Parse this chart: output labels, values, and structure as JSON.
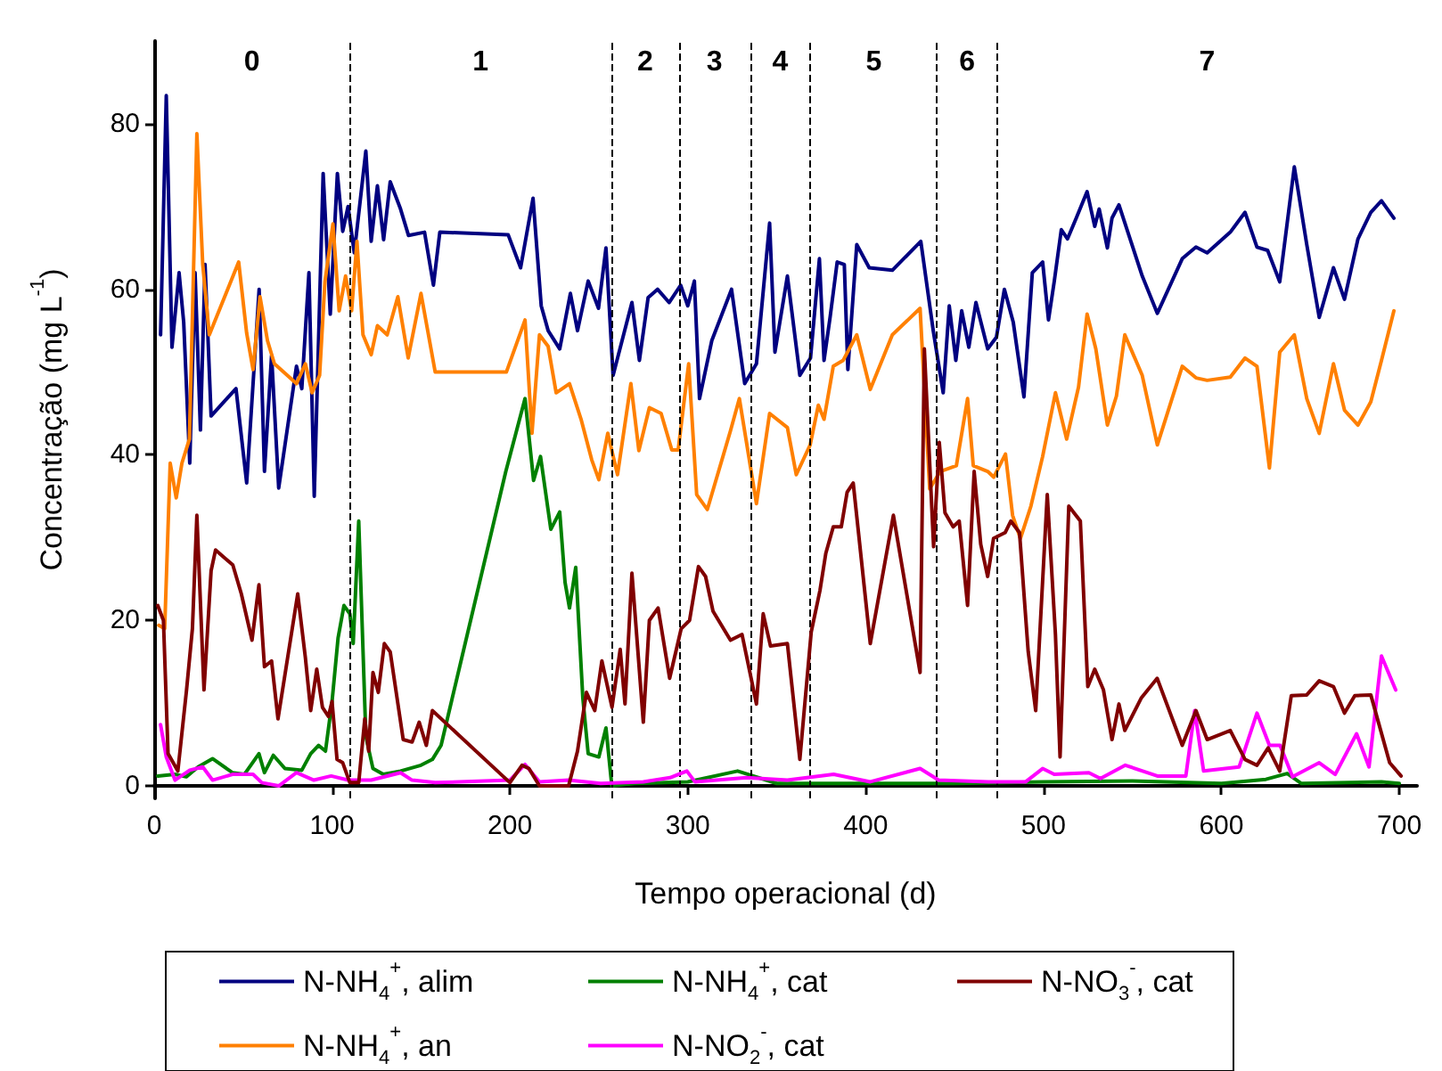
{
  "chart_data": {
    "type": "line",
    "xlabel": "Tempo operacional (d)",
    "ylabel": "Concentração (mg L$^{-1}$)",
    "xlim": [
      0,
      710
    ],
    "xticks": [
      0,
      100,
      200,
      300,
      400,
      500,
      600,
      700
    ],
    "ylim": [
      -1.5,
      90
    ],
    "yticks": [
      0,
      20,
      40,
      60,
      80
    ],
    "legend": "bottom",
    "line_style": "solid",
    "series": [
      {
        "name": "N-NH$_{4}$$^{+}$, alim",
        "color": "#000080",
        "x": [
          3.6,
          6.8,
          10,
          14,
          16.6,
          20,
          23,
          26,
          28.6,
          32,
          46,
          52,
          59,
          62,
          66,
          70,
          80,
          83,
          87,
          90,
          95,
          99,
          103,
          106,
          109,
          112.5,
          119,
          122,
          125.5,
          129,
          132.7,
          138.5,
          143,
          152,
          157,
          160.6,
          199,
          206,
          213,
          217.6,
          221.5,
          228,
          234,
          238,
          244,
          249.8,
          254,
          258,
          268.6,
          272.8,
          277.7,
          283,
          289.5,
          296,
          300,
          303.7,
          306.6,
          313.5,
          324.6,
          332,
          338.6,
          346,
          349,
          356,
          363,
          369,
          374,
          376.6,
          380,
          384,
          388,
          390,
          395,
          402,
          415,
          431,
          438,
          443.6,
          447,
          450.7,
          454,
          458,
          462,
          468.6,
          473.5,
          478,
          483,
          489,
          493.7,
          499.5,
          502.8,
          506,
          510,
          513.5,
          518.4,
          524.5,
          528.8,
          531.3,
          535.9,
          538.5,
          542.4,
          555.5,
          564,
          578,
          585.7,
          592,
          605,
          613.3,
          620,
          626,
          632.8,
          641,
          648,
          655,
          663,
          669.2,
          676.8,
          684,
          690,
          697
        ],
        "values": [
          54.5,
          83.4,
          53,
          62,
          56,
          39,
          62,
          43,
          63,
          44.7,
          48,
          36.6,
          60,
          38,
          52,
          36,
          50.7,
          48,
          62,
          35,
          74,
          57,
          74,
          67,
          70,
          64.4,
          76.7,
          65.8,
          72.5,
          66,
          73,
          69.7,
          66.5,
          66.9,
          60.5,
          66.9,
          66.6,
          62.6,
          71,
          58,
          55,
          52.8,
          59.5,
          55,
          61,
          57.7,
          65,
          49.6,
          58.4,
          51.4,
          59,
          60,
          58.4,
          60.5,
          58,
          61,
          46.8,
          53.8,
          60,
          48.6,
          51,
          68,
          52.4,
          61.6,
          49.6,
          51.7,
          63.7,
          51.4,
          56.6,
          63.3,
          63,
          50.3,
          65.4,
          62.6,
          62.3,
          65.8,
          55,
          47.5,
          58,
          51.4,
          57.4,
          53,
          58.4,
          52.8,
          54.2,
          60,
          56,
          47,
          62,
          63.3,
          56.3,
          60.9,
          67.2,
          66.1,
          68.6,
          71.8,
          67.6,
          69.7,
          65,
          68.6,
          70.2,
          61.6,
          57.1,
          63.7,
          65.1,
          64.4,
          66.9,
          69.3,
          65.1,
          64.7,
          60.9,
          74.8,
          65.4,
          56.6,
          62.6,
          58.8,
          66.1,
          69.3,
          70.7,
          68.6
        ]
      },
      {
        "name": "N-NH$_{4}$$^{+}$, an",
        "color": "#ff8000",
        "x": [
          2.6,
          5.9,
          9,
          12.4,
          15.6,
          19.8,
          24,
          27.3,
          31,
          47.5,
          52,
          55.6,
          59.5,
          63.7,
          67.6,
          80,
          85,
          88.8,
          93,
          96,
          100.5,
          104,
          107.6,
          111,
          114,
          117.4,
          122,
          125.5,
          131,
          137,
          142.8,
          150,
          158,
          198,
          208.5,
          212.4,
          216.6,
          221.5,
          226,
          233.5,
          240,
          246,
          250,
          255,
          260.5,
          268,
          272.5,
          278.4,
          285,
          291,
          294.6,
          300.5,
          305,
          311,
          324,
          329,
          338.6,
          346,
          356,
          361,
          368.8,
          373.4,
          376.6,
          381.8,
          387.3,
          395,
          402.6,
          415,
          430.6,
          436,
          442,
          451,
          457.3,
          460.5,
          468.6,
          472,
          478.6,
          482.6,
          487,
          492.9,
          499.5,
          506.7,
          513,
          519.7,
          524.5,
          529.4,
          535.9,
          541,
          545.7,
          555.5,
          564,
          578,
          585.7,
          592,
          605,
          613.3,
          620,
          627,
          632.8,
          641,
          648,
          655,
          663,
          669.2,
          676.8,
          684,
          690,
          697
        ],
        "values": [
          19.4,
          19,
          39,
          34.8,
          39,
          41.9,
          78.8,
          63,
          54.5,
          63.3,
          54.7,
          50.3,
          59.1,
          53.8,
          51,
          48.6,
          51,
          47.5,
          49.6,
          60.9,
          67.9,
          57.4,
          61.6,
          57.4,
          65.8,
          54.5,
          52.1,
          55.6,
          54.5,
          59.1,
          51.7,
          59.5,
          50,
          50,
          56.3,
          42.6,
          54.5,
          53.1,
          47.5,
          48.6,
          44.3,
          39.4,
          37,
          42.6,
          37.6,
          48.6,
          40.5,
          45.7,
          45,
          40.6,
          40.6,
          51,
          35.2,
          33.4,
          42.9,
          46.8,
          34.1,
          45,
          43.3,
          37.6,
          41.2,
          46,
          44.3,
          50.7,
          51.4,
          54.5,
          47.9,
          54.5,
          57.7,
          35.9,
          38,
          38.7,
          46.8,
          38.7,
          38,
          37.3,
          40.1,
          32.7,
          29.9,
          33.8,
          39.8,
          47.5,
          41.9,
          48.2,
          57,
          52.8,
          43.6,
          47.1,
          54.5,
          49.6,
          41.2,
          50.7,
          49.3,
          49,
          49.4,
          51.7,
          50.7,
          38.4,
          52.4,
          54.5,
          46.8,
          42.6,
          51,
          45.4,
          43.6,
          46.4,
          51.4,
          57.4
        ]
      },
      {
        "name": "N-NH$_{4}$$^{+}$, cat",
        "color": "#008000",
        "x": [
          2,
          11.7,
          18,
          24.7,
          32.8,
          44,
          50.7,
          58.9,
          62,
          67,
          73.5,
          83,
          88,
          92.4,
          96.3,
          100,
          103.4,
          106.7,
          110,
          111.9,
          115,
          119,
          123,
          128.8,
          138.5,
          150,
          156.4,
          161.3,
          197.7,
          208.5,
          213.3,
          217.2,
          223,
          228,
          231,
          233.5,
          237,
          241,
          244,
          250,
          254,
          257.3,
          270,
          300,
          328,
          350,
          400,
          450,
          500,
          550,
          600,
          625,
          637,
          645,
          690,
          700
        ],
        "values": [
          1.2,
          1.4,
          1.1,
          2.3,
          3.3,
          1.6,
          1.4,
          3.9,
          1.6,
          3.7,
          2.1,
          1.9,
          3.9,
          4.9,
          4.2,
          10.2,
          17.9,
          21.8,
          20.8,
          17.2,
          32,
          6,
          2.1,
          1.4,
          1.8,
          2.5,
          3.2,
          4.9,
          38,
          46.8,
          36.9,
          39.8,
          31,
          33.1,
          24.6,
          21.5,
          26.4,
          10.6,
          3.9,
          3.5,
          7,
          0,
          0.3,
          0.5,
          1.8,
          0.3,
          0.3,
          0.3,
          0.5,
          0.6,
          0.3,
          0.8,
          1.5,
          0.3,
          0.5,
          0.3
        ]
      },
      {
        "name": "N-NO$_{2}$$^{-}$, cat",
        "color": "#ff00ff",
        "x": [
          3.6,
          6.8,
          11.7,
          20,
          27.3,
          32.8,
          44,
          55.6,
          60.5,
          70,
          80,
          89.8,
          99.5,
          109,
          122,
          138.5,
          145,
          158,
          200,
          208.5,
          216.6,
          233,
          251,
          275,
          290,
          299.5,
          304,
          333,
          356,
          382,
          402.6,
          430.6,
          441,
          469,
          490,
          499.5,
          506,
          525.5,
          532,
          546,
          564,
          580,
          585,
          590,
          610,
          620,
          627,
          633,
          640,
          655,
          664,
          676,
          683,
          690,
          698
        ],
        "values": [
          7.4,
          3.5,
          0.7,
          1.9,
          2.3,
          0.7,
          1.4,
          1.4,
          0.4,
          0,
          1.6,
          0.7,
          1.2,
          0.7,
          0.7,
          1.6,
          0.7,
          0.4,
          0.7,
          2.6,
          0.5,
          0.7,
          0.3,
          0.5,
          1,
          1.8,
          0.5,
          1,
          0.7,
          1.4,
          0.5,
          2.1,
          0.7,
          0.5,
          0.5,
          2.1,
          1.4,
          1.6,
          0.9,
          2.5,
          1.2,
          1.2,
          9.1,
          1.8,
          2.3,
          8.8,
          4.9,
          4.9,
          1.1,
          2.8,
          1.4,
          6.3,
          2.3,
          15.7,
          11.6
        ]
      },
      {
        "name": "N-NO$_{3}$$^{-}$, cat",
        "color": "#800000",
        "x": [
          2,
          5.2,
          7.8,
          13.3,
          18.2,
          21.5,
          24,
          28,
          32,
          34.5,
          44.2,
          49,
          55,
          58.9,
          62,
          66,
          69.6,
          80.7,
          85,
          88,
          91.4,
          94.6,
          98,
          100,
          102.8,
          106,
          110,
          115,
          118.4,
          120.6,
          123,
          126,
          129.4,
          132.7,
          140,
          145,
          149,
          153,
          156.4,
          200,
          206.8,
          210.7,
          216.6,
          226,
          233,
          238,
          243,
          247.7,
          251.7,
          257.4,
          262,
          264.7,
          268.6,
          275,
          278.4,
          283.3,
          289.8,
          296.3,
          301,
          306,
          310,
          314.2,
          324,
          330.5,
          338.6,
          342.4,
          346.5,
          356,
          363,
          369.4,
          374.3,
          377.6,
          381.8,
          386.3,
          389.6,
          393,
          402.6,
          415.6,
          430.6,
          433,
          438.2,
          441.4,
          444.6,
          449.2,
          452.6,
          457.3,
          461,
          464.7,
          468.6,
          471.9,
          478.4,
          481.6,
          486.5,
          491.4,
          495.6,
          502.1,
          506.7,
          509.3,
          514.2,
          520.7,
          524.9,
          528.8,
          533.7,
          538.5,
          542.4,
          545.7,
          554.9,
          563.9,
          578,
          585.7,
          592,
          605,
          613.3,
          620,
          626.3,
          632.8,
          639.3,
          648,
          655,
          663,
          669.2,
          675,
          684,
          694.6,
          701
        ],
        "values": [
          21.8,
          20,
          3.9,
          1.8,
          11.6,
          19,
          32.7,
          11.6,
          26,
          28.5,
          26.7,
          23.2,
          17.6,
          24.3,
          14.4,
          15.1,
          8.1,
          23.2,
          15.5,
          9.1,
          14.1,
          9.5,
          8.4,
          10.2,
          3.2,
          2.8,
          0.4,
          0.4,
          8.1,
          4.2,
          13.7,
          11.3,
          17.2,
          16.2,
          5.6,
          5.3,
          7.7,
          4.9,
          9.1,
          0.4,
          2.5,
          2.1,
          0,
          0,
          0,
          4.2,
          11.3,
          9.1,
          15.1,
          9.5,
          16.5,
          9.9,
          25.7,
          7.7,
          20,
          21.5,
          13,
          19,
          20,
          26.5,
          25.3,
          21.1,
          17.6,
          18.3,
          9.9,
          20.8,
          16.9,
          17.2,
          3.2,
          18.6,
          23.6,
          28.1,
          31.3,
          31.3,
          35.5,
          36.6,
          17.2,
          32.7,
          13.7,
          52.8,
          28.9,
          41.5,
          33,
          31.3,
          32,
          21.8,
          38,
          29.2,
          25.3,
          29.9,
          30.6,
          32,
          30.6,
          16.2,
          9.1,
          35.2,
          18.3,
          3.5,
          33.8,
          32,
          12,
          14.1,
          11.6,
          5.6,
          9.9,
          6.7,
          10.6,
          13,
          4.9,
          9.1,
          5.6,
          6.7,
          3.2,
          2.5,
          4.6,
          1.8,
          10.9,
          11,
          12.7,
          12,
          8.8,
          10.9,
          11,
          2.8,
          1.2
        ]
      }
    ],
    "ref_lines": [
      {
        "axis": "x",
        "value": 110,
        "color": "#000000",
        "line_style": "dashed"
      },
      {
        "axis": "x",
        "value": 257,
        "color": "#000000",
        "line_style": "dashed"
      },
      {
        "axis": "x",
        "value": 295,
        "color": "#000000",
        "line_style": "dashed"
      },
      {
        "axis": "x",
        "value": 335,
        "color": "#000000",
        "line_style": "dashed"
      },
      {
        "axis": "x",
        "value": 369,
        "color": "#000000",
        "line_style": "dashed"
      },
      {
        "axis": "x",
        "value": 440,
        "color": "#000000",
        "line_style": "dashed"
      },
      {
        "axis": "x",
        "value": 474,
        "color": "#000000",
        "line_style": "dashed"
      }
    ],
    "annotations": [
      "0",
      "1",
      "2",
      "3",
      "4",
      "5",
      "6",
      "7"
    ]
  }
}
